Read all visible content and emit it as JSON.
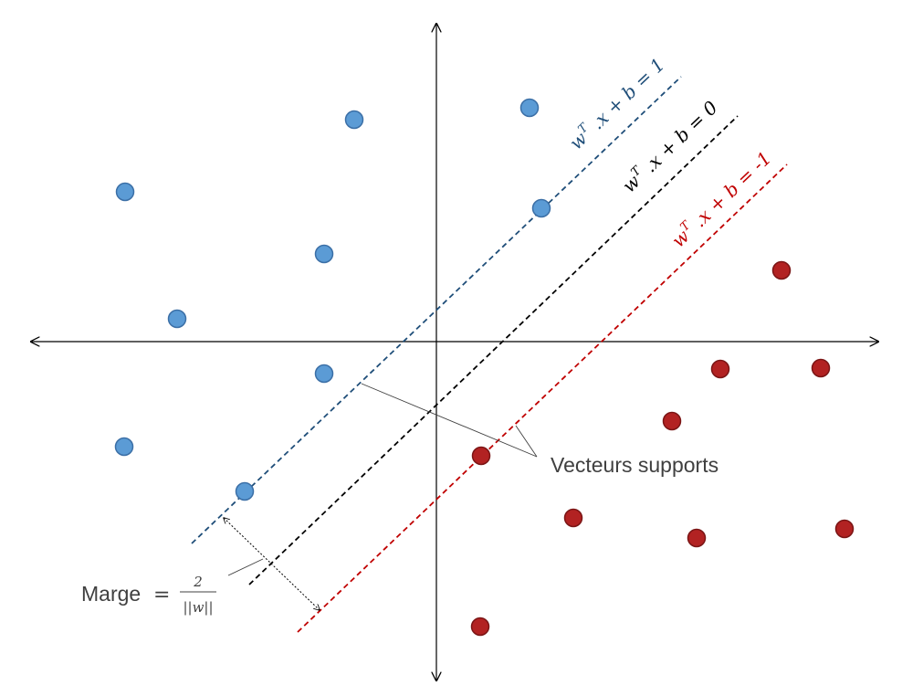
{
  "colors": {
    "blue_fill": "#5b9bd5",
    "blue_stroke": "#3b6fa6",
    "red_fill": "#b22222",
    "red_stroke": "#7a1515",
    "blue_line": "#1f4e79",
    "black_line": "#000000",
    "red_line": "#c00000",
    "axis": "#000000",
    "text": "#404040"
  },
  "labels": {
    "pos_margin_prefix": "w",
    "pos_margin_sup": "T",
    "pos_margin_rest": " .x + b = 1",
    "hyperplane_prefix": "w",
    "hyperplane_sup": "T",
    "hyperplane_rest": " .x + b = 0",
    "neg_margin_prefix": "w",
    "neg_margin_sup": "T",
    "neg_margin_rest": " .x + b = -1",
    "support_vectors": "Vecteurs supports",
    "margin_word": "Marge",
    "margin_eq": "=",
    "margin_num": "2",
    "margin_den": "||w||"
  },
  "icons": {
    "blue_point": "circle-icon",
    "red_point": "circle-icon"
  }
}
